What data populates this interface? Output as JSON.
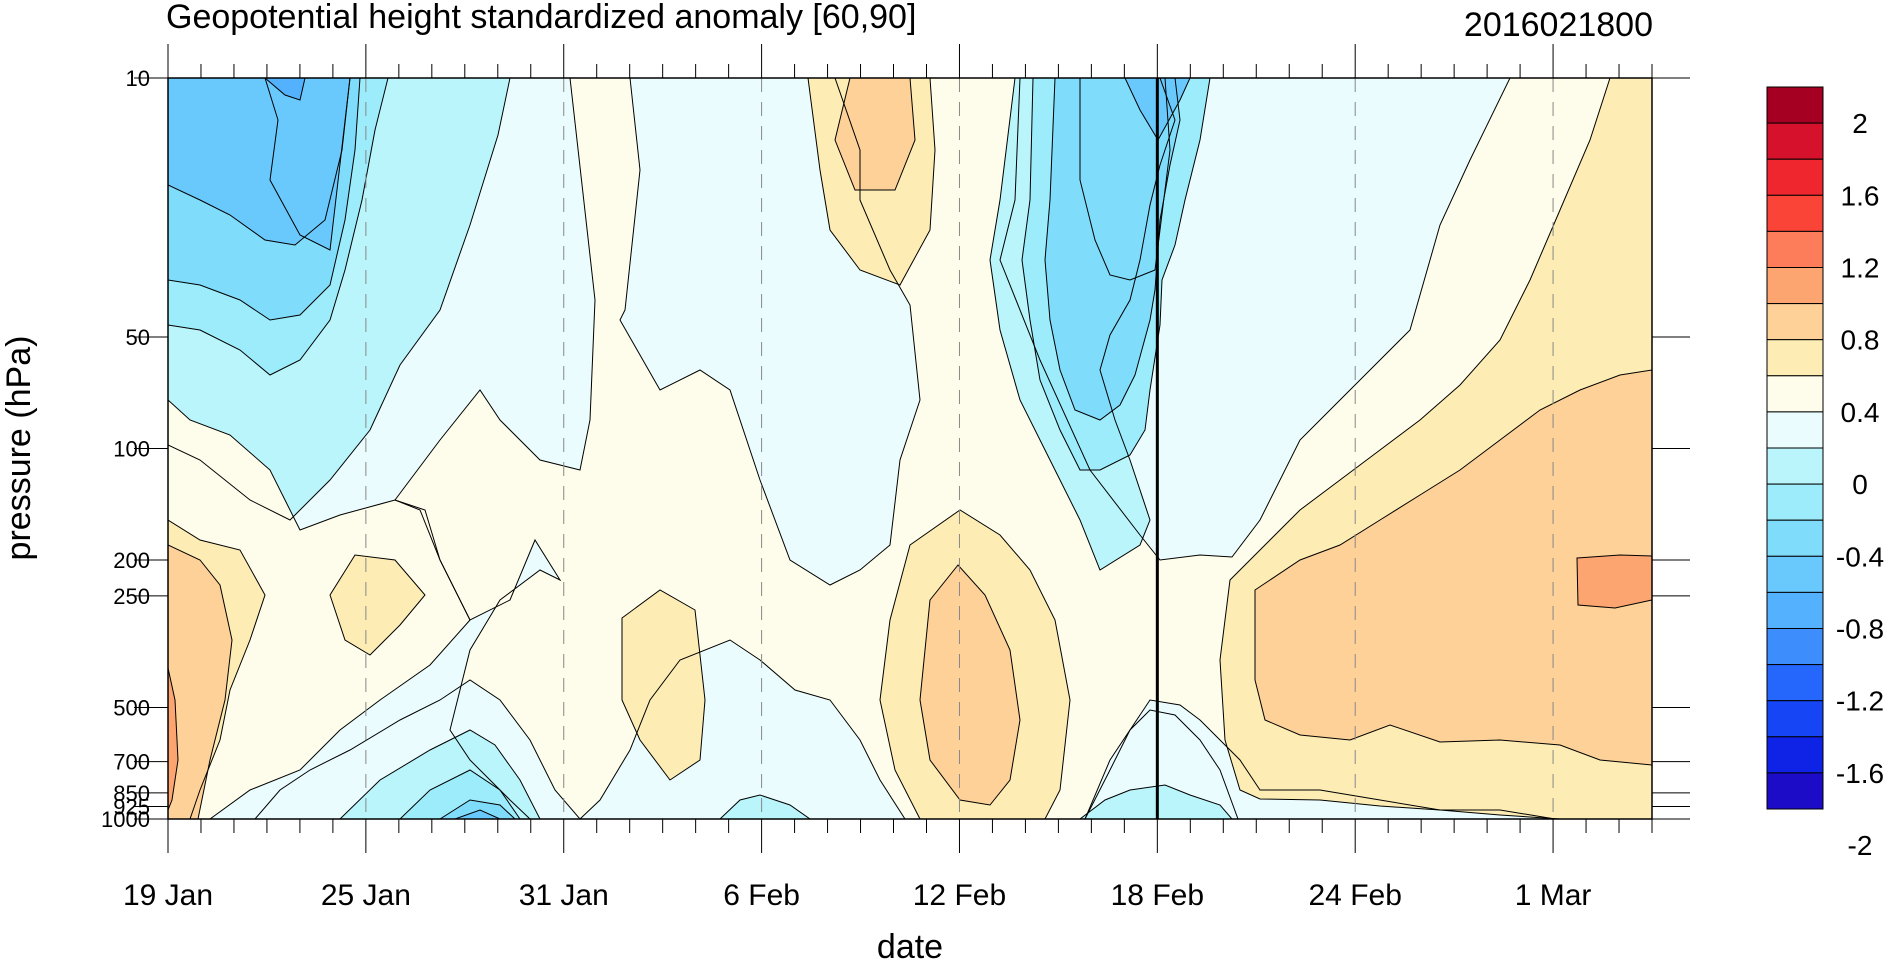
{
  "chart_data": {
    "type": "heatmap",
    "title": "Geopotential height standardized anomaly [60,90]",
    "date_label": "2016021800",
    "xlabel": "date",
    "ylabel": "pressure (hPa)",
    "x_tick_labels": [
      "19 Jan",
      "25 Jan",
      "31 Jan",
      "6 Feb",
      "12 Feb",
      "18 Feb",
      "24 Feb",
      "1 Mar"
    ],
    "x_tick_days": [
      0,
      6,
      12,
      18,
      24,
      30,
      36,
      42
    ],
    "x_range_days": [
      0,
      45
    ],
    "y_ticks": [
      10,
      50,
      100,
      200,
      250,
      500,
      700,
      850,
      925,
      1000
    ],
    "y_tick_labels": [
      "10",
      "50",
      "100",
      "200",
      "250",
      "500",
      "700",
      "850",
      "925",
      "1000"
    ],
    "y_range": [
      10,
      1000
    ],
    "y_scale": "log",
    "y_reversed": true,
    "current_date_line_day": 30,
    "colorbar": {
      "labels": [
        "2",
        "1.6",
        "1.2",
        "0.8",
        "0.4",
        "0",
        "-0.4",
        "-0.8",
        "-1.2",
        "-1.6",
        "-2"
      ],
      "colors": [
        "#a50021",
        "#d6112b",
        "#f0262e",
        "#fa4437",
        "#fd7c5a",
        "#fda571",
        "#fdd198",
        "#fdedb5",
        "#fefcea",
        "#eafcfd",
        "#b9f5fb",
        "#9cecfb",
        "#7fdcfb",
        "#6ac9fc",
        "#54b1fd",
        "#3d8dfd",
        "#2566fd",
        "#1545f5",
        "#0f23e6",
        "#1d0cc7"
      ]
    },
    "fill_colors": {
      "pos_0_0": "#fefcea",
      "pos_0_4": "#fdedb5",
      "pos_0_8": "#fdd198",
      "pos_1_2": "#fda571",
      "neg_0": "#eafcfd",
      "neg_0_4": "#b9f5fb",
      "neg_0_8": "#9cecfb",
      "neg_1_2": "#7fdcfb",
      "neg_1_6": "#6ac9fc",
      "neg_2_0": "#54b1fd"
    }
  }
}
